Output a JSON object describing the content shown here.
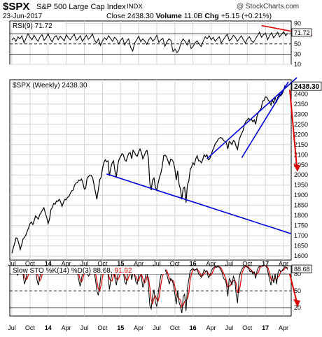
{
  "header": {
    "symbol": "$SPX",
    "name": "S&P 500 Large Cap Index",
    "exchange": "INDX",
    "watermark": "@ StockCharts.com",
    "date": "23-Jun-2017",
    "close_label": "Close",
    "close_value": "2438.30",
    "volume_label": "Volume",
    "volume_value": "11.0B",
    "chg_label": "Chg",
    "chg_value": "+5.15 (+0.21%)"
  },
  "chart_data": [
    {
      "type": "line",
      "panel": "rsi",
      "label": "RSI(9) 71.72",
      "last_value": "71.72",
      "ylim": [
        10,
        95
      ],
      "y_ticks": [
        90,
        70,
        50,
        30,
        10
      ],
      "reference_lines": [
        70,
        50,
        30
      ],
      "values": [
        58,
        62,
        55,
        64,
        60,
        66,
        52,
        61,
        70,
        63,
        58,
        67,
        60,
        55,
        64,
        68,
        57,
        62,
        70,
        60,
        54,
        63,
        66,
        58,
        65,
        61,
        56,
        68,
        62,
        58,
        64,
        69,
        57,
        60,
        66,
        55,
        61,
        67,
        59,
        63,
        70,
        58,
        52,
        60,
        47,
        56,
        62,
        58,
        66,
        61,
        55,
        63,
        59,
        50,
        57,
        62,
        48,
        55,
        60,
        43,
        36,
        52,
        58,
        65,
        54,
        60,
        56,
        49,
        58,
        63,
        55,
        60,
        67,
        53,
        58,
        61,
        45,
        54,
        60,
        57,
        35,
        40,
        33,
        38,
        52,
        60,
        55,
        48,
        58,
        41,
        45,
        52,
        56,
        50,
        45,
        55,
        64,
        60,
        66,
        58,
        63,
        55,
        60,
        64,
        52,
        58,
        64,
        69,
        56,
        60,
        67,
        63,
        55,
        61,
        66,
        58,
        52,
        60,
        64,
        56,
        53,
        60,
        66,
        73,
        63,
        68,
        71,
        58,
        66,
        72,
        62,
        67,
        73,
        64,
        69,
        74,
        66,
        71
      ]
    },
    {
      "type": "line",
      "panel": "price",
      "title": "$SPX (Weekly) 2438.30",
      "last_value": "2438.30",
      "ylim": [
        1580,
        2470
      ],
      "y_ticks": [
        2400,
        2350,
        2300,
        2250,
        2200,
        2150,
        2100,
        2050,
        2000,
        1950,
        1900,
        1850,
        1800,
        1750,
        1700,
        1650,
        1600
      ],
      "x_ticks": [
        "Jul",
        "Oct",
        "14",
        "Apr",
        "Jul",
        "Oct",
        "15",
        "Apr",
        "Jul",
        "Oct",
        "16",
        "Apr",
        "Jul",
        "Oct",
        "17",
        "Apr"
      ],
      "x_tick_weeks": [
        0,
        13,
        26,
        39,
        52,
        65,
        78,
        91,
        104,
        117,
        130,
        143,
        156,
        169,
        182,
        195
      ],
      "values": [
        1614,
        1640,
        1663,
        1690,
        1686,
        1660,
        1632,
        1656,
        1684,
        1692,
        1703,
        1722,
        1740,
        1760,
        1768,
        1755,
        1775,
        1798,
        1790,
        1782,
        1805,
        1815,
        1828,
        1838,
        1812,
        1790,
        1760,
        1782,
        1828,
        1840,
        1860,
        1855,
        1872,
        1870,
        1880,
        1867,
        1845,
        1865,
        1880,
        1878,
        1890,
        1895,
        1910,
        1922,
        1925,
        1950,
        1960,
        1962,
        1975,
        1972,
        1980,
        1960,
        1930,
        1935,
        1985,
        1992,
        2000,
        1998,
        1985,
        1950,
        1915,
        1880,
        1925,
        1975,
        1988,
        2030,
        2060,
        2075,
        2065,
        2070,
        1995,
        2035,
        2060,
        2070,
        2018,
        1990,
        2050,
        2078,
        2090,
        2105,
        2100,
        2075,
        2068,
        2090,
        2108,
        2110,
        2080,
        2122,
        2112,
        2098,
        2092,
        2115,
        2128,
        2110,
        2080,
        2095,
        2115,
        2121,
        2082,
        1960,
        1925,
        1975,
        1985,
        1940,
        1925,
        1960,
        1990,
        2010,
        2045,
        2095,
        2098,
        2090,
        2071,
        2050,
        2078,
        2075,
        2062,
        2030,
        1975,
        2020,
        1955,
        1930,
        1880,
        1935,
        1940,
        1864,
        1950,
        1970,
        2025,
        2040,
        2060,
        2050,
        2080,
        2095,
        2070,
        2070,
        2060,
        2075,
        2100,
        2090,
        2100,
        2075,
        2080,
        2096,
        2120,
        2135,
        2155,
        2162,
        2175,
        2182,
        2185,
        2180,
        2170,
        2165,
        2158,
        2128,
        2165,
        2160,
        2150,
        2170,
        2165,
        2140,
        2126,
        2170,
        2190,
        2205,
        2220,
        2250,
        2265,
        2272,
        2280,
        2270,
        2275,
        2262,
        2272,
        2250,
        2290,
        2310,
        2319,
        2330,
        2365,
        2368,
        2385,
        2383,
        2370,
        2360,
        2345,
        2370,
        2355,
        2386,
        2358,
        2385,
        2398,
        2390,
        2400,
        2416,
        2440,
        2432,
        2438
      ]
    },
    {
      "type": "line",
      "panel": "stochastic",
      "label": "Slow STO %K(14) %D(3) 88.68, 91.92",
      "k_last": "88.68",
      "d_last": "91.92",
      "ylim": [
        5,
        95
      ],
      "y_ticks": [
        80,
        50,
        20
      ],
      "reference_lines": [
        80,
        50,
        20
      ],
      "series": [
        {
          "name": "%K(14)",
          "values": [
            88,
            92,
            86,
            90,
            78,
            82,
            90,
            86,
            80,
            62,
            70,
            85,
            88,
            90,
            84,
            86,
            92,
            88,
            70,
            60,
            74,
            86,
            90,
            88,
            84,
            90,
            86,
            92,
            88,
            94,
            90,
            86,
            82,
            88,
            92,
            86,
            90,
            88,
            84,
            80,
            86,
            90,
            88,
            92,
            90,
            94,
            88,
            82,
            70,
            58,
            72,
            86,
            90,
            88,
            82,
            76,
            80,
            86,
            90,
            84,
            70,
            50,
            42,
            58,
            80,
            86,
            90,
            88,
            84,
            80,
            52,
            70,
            82,
            86,
            72,
            60,
            78,
            86,
            90,
            88,
            84,
            66,
            62,
            80,
            86,
            88,
            70,
            84,
            80,
            66,
            62,
            78,
            86,
            74,
            56,
            64,
            78,
            84,
            60,
            24,
            18,
            40,
            52,
            30,
            22,
            44,
            64,
            78,
            84,
            90,
            88,
            82,
            72,
            62,
            72,
            70,
            60,
            44,
            26,
            50,
            30,
            22,
            10,
            40,
            44,
            14,
            54,
            70,
            86,
            88,
            90,
            86,
            88,
            90,
            80,
            78,
            74,
            80,
            88,
            84,
            86,
            74,
            76,
            84,
            90,
            92,
            94,
            92,
            94,
            92,
            88,
            82,
            72,
            70,
            62,
            40,
            72,
            68,
            60,
            76,
            70,
            44,
            28,
            70,
            82,
            88,
            92,
            95,
            94,
            92,
            90,
            84,
            86,
            80,
            84,
            72,
            86,
            92,
            94,
            95,
            94,
            96,
            95,
            92,
            82,
            70,
            60,
            78,
            64,
            80,
            62,
            82,
            88,
            84,
            86,
            90,
            93,
            92,
            88
          ]
        },
        {
          "name": "%D(3)",
          "values": [
            86,
            90,
            89,
            88,
            84,
            82,
            84,
            86,
            84,
            76,
            70,
            72,
            80,
            88,
            88,
            87,
            88,
            89,
            83,
            74,
            68,
            72,
            82,
            88,
            87,
            88,
            87,
            89,
            89,
            91,
            91,
            90,
            86,
            86,
            88,
            88,
            89,
            88,
            87,
            84,
            84,
            86,
            88,
            90,
            90,
            92,
            91,
            88,
            80,
            70,
            66,
            72,
            82,
            88,
            87,
            83,
            80,
            80,
            84,
            86,
            82,
            68,
            54,
            50,
            60,
            74,
            85,
            88,
            88,
            84,
            72,
            68,
            68,
            80,
            80,
            72,
            70,
            74,
            84,
            88,
            87,
            79,
            70,
            69,
            76,
            84,
            82,
            81,
            78,
            76,
            69,
            68,
            76,
            80,
            72,
            64,
            66,
            76,
            74,
            56,
            34,
            27,
            37,
            41,
            35,
            32,
            43,
            62,
            75,
            84,
            87,
            87,
            81,
            72,
            69,
            68,
            68,
            58,
            43,
            40,
            36,
            34,
            21,
            24,
            31,
            33,
            36,
            46,
            70,
            81,
            88,
            88,
            88,
            88,
            86,
            82,
            77,
            77,
            81,
            84,
            86,
            81,
            78,
            78,
            83,
            89,
            92,
            93,
            93,
            93,
            91,
            87,
            81,
            75,
            68,
            57,
            58,
            60,
            67,
            68,
            69,
            63,
            47,
            47,
            60,
            80,
            87,
            92,
            94,
            94,
            92,
            89,
            87,
            83,
            83,
            79,
            81,
            83,
            91,
            94,
            94,
            95,
            95,
            94,
            90,
            81,
            71,
            69,
            67,
            74,
            69,
            75,
            77,
            85,
            86,
            87,
            90,
            92,
            91
          ]
        }
      ],
      "x_ticks": [
        "Jul",
        "Oct",
        "14",
        "Apr",
        "Jul",
        "Oct",
        "15",
        "Apr",
        "Jul",
        "Oct",
        "16",
        "Apr",
        "Jul",
        "Oct",
        "17",
        "Apr"
      ]
    }
  ],
  "colors": {
    "price_line": "#000000",
    "trendline": "#0000dd",
    "arrow": "#dd0000",
    "rsi_fill": "#7aa07a",
    "stoch_d": "#e00000",
    "stoch_k": "#000000",
    "grid": "#d4d4d4"
  }
}
